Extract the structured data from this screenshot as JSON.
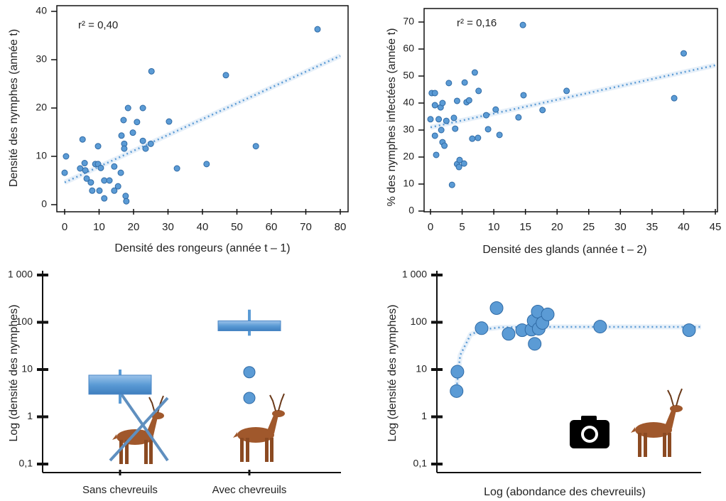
{
  "chart_data": [
    {
      "type": "scatter",
      "annotation": "r² = 0,40",
      "xlabel": "Densité des rongeurs (année t – 1)",
      "ylabel": "Densité des nymphes (année t)",
      "xlim": [
        0,
        80
      ],
      "xticks": [
        0,
        10,
        20,
        30,
        40,
        50,
        60,
        70,
        80
      ],
      "ylim": [
        0,
        40
      ],
      "yticks": [
        0,
        10,
        20,
        30,
        40
      ],
      "color": "#5b9bd5",
      "x": [
        0,
        0.4,
        5.2,
        4.5,
        5.8,
        6,
        6.4,
        7.6,
        8,
        8.9,
        9.7,
        9.7,
        10.1,
        10.5,
        11.5,
        11.5,
        13,
        14.4,
        14.4,
        15.5,
        16.3,
        16.5,
        17.1,
        17.3,
        17.3,
        17.7,
        17.9,
        18.4,
        19.8,
        21,
        22.7,
        22.7,
        23.5,
        25,
        25.2,
        30.3,
        32.6,
        41.2,
        46.8,
        55.5,
        73.4
      ],
      "values": [
        6.6,
        10,
        13.5,
        7.5,
        8.6,
        7.1,
        5.4,
        4.6,
        2.9,
        8.4,
        8.4,
        12.1,
        2.9,
        7.6,
        5,
        1.3,
        5,
        7.9,
        2.9,
        3.8,
        6.6,
        14.3,
        17.5,
        12.6,
        11.6,
        1.8,
        0.7,
        20,
        14.9,
        17.1,
        20,
        13.2,
        11.6,
        12.6,
        27.6,
        17.2,
        7.5,
        8.4,
        26.8,
        12.1,
        36.3
      ],
      "trendline": {
        "x": [
          0,
          80
        ],
        "values": [
          4.6,
          30.8
        ]
      }
    },
    {
      "type": "scatter",
      "annotation": "r² = 0,16",
      "xlabel": "Densité des glands (année t – 2)",
      "ylabel": "% des nymphes infectées (année t)",
      "xlim": [
        0,
        45
      ],
      "xticks": [
        0,
        5,
        10,
        15,
        20,
        25,
        30,
        35,
        40,
        45
      ],
      "ylim": [
        0,
        70
      ],
      "yticks": [
        0,
        10,
        20,
        30,
        40,
        50,
        60,
        70
      ],
      "color": "#5b9bd5",
      "x": [
        0.2,
        0.7,
        0,
        0.7,
        0.7,
        0.9,
        1.3,
        1.6,
        1.7,
        1.9,
        1.9,
        2.2,
        2.5,
        2.9,
        3.4,
        3.7,
        3.9,
        4.2,
        4.2,
        4.5,
        4.6,
        5.3,
        5.4,
        5.7,
        6.1,
        6.6,
        7,
        7.5,
        7.6,
        8.8,
        9.1,
        10.3,
        10.9,
        13.9,
        14.6,
        14.7,
        17.7,
        21.5,
        38.5,
        40
      ],
      "values": [
        43.7,
        43.7,
        34,
        39.2,
        27.9,
        20.8,
        34,
        38.4,
        30,
        40,
        25.5,
        24.2,
        33.4,
        47.4,
        9.7,
        34.5,
        30.5,
        40.8,
        17.4,
        16.3,
        18.9,
        17.6,
        47.6,
        40.3,
        41,
        26.8,
        51.3,
        27.1,
        44.5,
        35.5,
        30.3,
        37.6,
        28.2,
        34.7,
        68.9,
        42.9,
        37.4,
        44.5,
        41.8,
        58.4
      ],
      "trendline": {
        "x": [
          0,
          45
        ],
        "values": [
          31,
          54
        ]
      }
    },
    {
      "type": "box",
      "ylabel": "Log (densité des nymphes)",
      "yscale": "log",
      "ylim": [
        0.1,
        1000
      ],
      "yticks": [
        {
          "value": 0.1,
          "label": "0,1"
        },
        1,
        10,
        100,
        {
          "value": 1000,
          "label": "1 000"
        }
      ],
      "categories": [
        "Sans chevreuils",
        "Avec chevreuils"
      ],
      "color": "#5b9bd5",
      "boxes": [
        {
          "whisker_low": 1.9,
          "q1": 3,
          "q3": 7.6,
          "whisker_high": 10
        },
        {
          "whisker_low": 52,
          "q1": 66,
          "q3": 107,
          "whisker_high": 185
        }
      ],
      "outliers": [
        [],
        [
          8.8,
          2.5
        ]
      ]
    },
    {
      "type": "scatter",
      "xlabel": "Log (abondance des chevreuils)",
      "ylabel": "Log (densité des nymphes)",
      "xscale": "log",
      "yscale": "log",
      "xlim": [
        1,
        100
      ],
      "ylim": [
        0.1,
        1000
      ],
      "yticks": [
        {
          "value": 0.1,
          "label": "0,1"
        },
        1,
        10,
        100,
        {
          "value": 1000,
          "label": "1 000"
        }
      ],
      "color": "#5b9bd5",
      "x": [
        1.43,
        1.41,
        2.18,
        2.83,
        3.49,
        4.42,
        5.2,
        5.4,
        5.5,
        5.8,
        5.9,
        6.3,
        6.9,
        17.2,
        81
      ],
      "values": [
        9,
        3.5,
        75,
        200,
        57,
        68,
        70,
        108,
        35,
        168,
        73,
        97,
        147,
        81,
        68
      ],
      "trendline": {
        "x": [
          1.41,
          1.5,
          1.8,
          2.2,
          3,
          5,
          10,
          30,
          100
        ],
        "values": [
          4,
          20,
          55,
          70,
          78,
          80,
          80,
          80,
          80
        ]
      }
    }
  ]
}
